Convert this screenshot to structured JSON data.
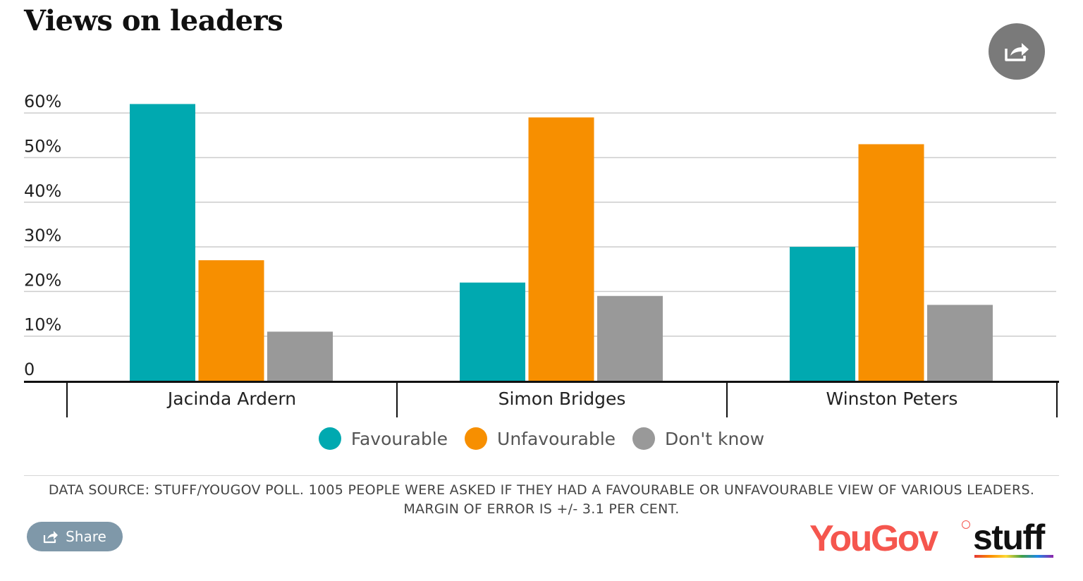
{
  "title": "Views on leaders",
  "share_label": "Share",
  "source_lines": [
    "DATA SOURCE: STUFF/YOUGOV POLL. 1005 PEOPLE WERE ASKED IF THEY HAD A FAVOURABLE OR UNFAVOURABLE VIEW OF VARIOUS LEADERS.",
    "MARGIN OF ERROR IS +/- 3.1 PER CENT."
  ],
  "logos": {
    "yougov": "YouGov",
    "stuff": "stuff"
  },
  "icons": {
    "share": "share-arrow-icon"
  },
  "colors": {
    "favourable": "#00a9b0",
    "unfavourable": "#f78f00",
    "dont_know": "#999999",
    "grid": "#cccccc",
    "axis": "#111111"
  },
  "chart_data": {
    "type": "bar",
    "title": "Views on leaders",
    "categories": [
      "Jacinda Ardern",
      "Simon Bridges",
      "Winston Peters"
    ],
    "series": [
      {
        "name": "Favourable",
        "color": "#00a9b0",
        "values": [
          62,
          22,
          30
        ]
      },
      {
        "name": "Unfavourable",
        "color": "#f78f00",
        "values": [
          27,
          59,
          53
        ]
      },
      {
        "name": "Don't know",
        "color": "#999999",
        "values": [
          11,
          19,
          17
        ]
      }
    ],
    "yticks": [
      0,
      10,
      20,
      30,
      40,
      50,
      60
    ],
    "ytick_labels": [
      "0",
      "10%",
      "20%",
      "30%",
      "40%",
      "50%",
      "60%"
    ],
    "ylim": [
      0,
      60
    ],
    "xlabel": "",
    "ylabel": "",
    "grid": true,
    "legend_position": "bottom-center"
  }
}
